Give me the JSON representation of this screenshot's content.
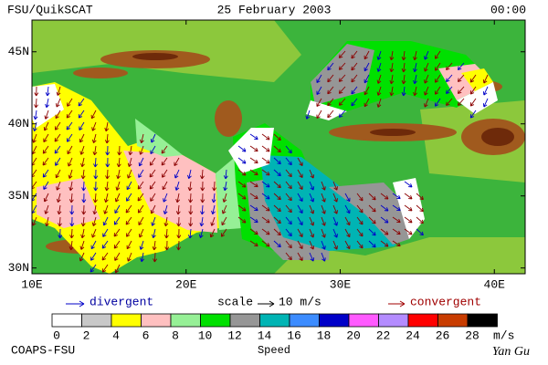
{
  "header": {
    "title": "FSU/QuikSCAT",
    "date": "25 February 2003",
    "time": "00:00"
  },
  "map": {
    "lonlim": [
      10,
      42
    ],
    "latlim": [
      29.6,
      47.2
    ],
    "lonticks": [
      {
        "value": 10,
        "label": "10E"
      },
      {
        "value": 20,
        "label": "20E"
      },
      {
        "value": 30,
        "label": "30E"
      },
      {
        "value": 40,
        "label": "40E"
      }
    ],
    "latticks": [
      {
        "value": 45,
        "label": "45N"
      },
      {
        "value": 40,
        "label": "40N"
      },
      {
        "value": 35,
        "label": "35N"
      },
      {
        "value": 30,
        "label": "30N"
      }
    ]
  },
  "legend": {
    "divergent": "divergent",
    "scale": "scale",
    "scale_value": "10 m/s",
    "convergent": "convergent"
  },
  "colorbar": {
    "title": "Speed",
    "unit": "m/s",
    "ticks": [
      0,
      2,
      4,
      6,
      8,
      10,
      12,
      14,
      16,
      18,
      20,
      22,
      24,
      26,
      28
    ],
    "colors": [
      "#ffffff",
      "#c8c8c8",
      "#ffff00",
      "#ffc0c0",
      "#96f096",
      "#00e000",
      "#969696",
      "#00b4b4",
      "#3c8cff",
      "#0000c8",
      "#ff5aff",
      "#b48cff",
      "#ff0000",
      "#c83c00",
      "#000000"
    ]
  },
  "footer": {
    "left": "COAPS-FSU",
    "right": "Yan Gu"
  }
}
